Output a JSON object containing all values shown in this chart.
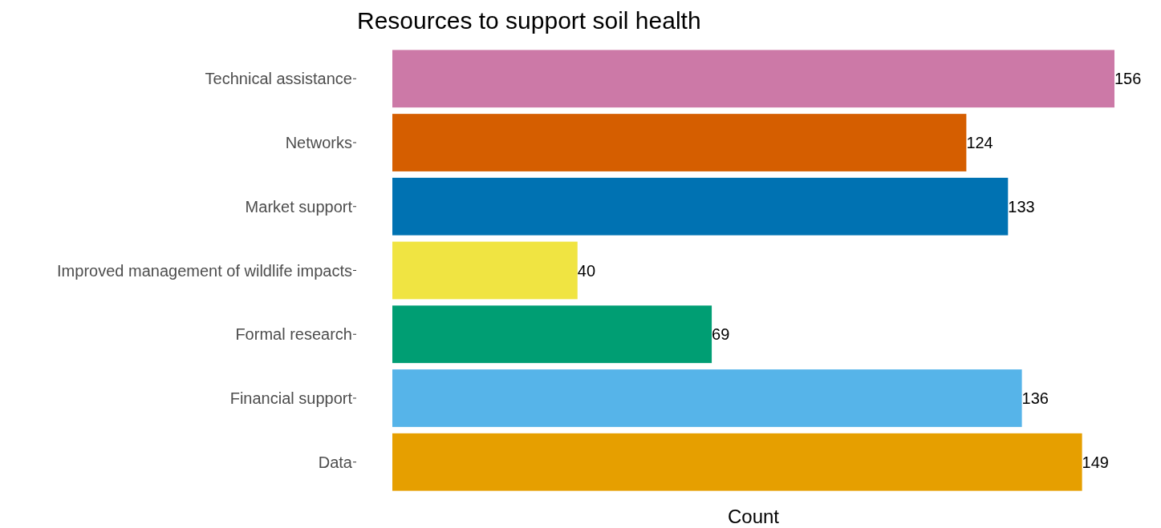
{
  "chart_data": {
    "type": "bar",
    "orientation": "horizontal",
    "title": "Resources to support soil health",
    "xlabel": "Count",
    "categories": [
      "Technical assistance",
      "Networks",
      "Market support",
      "Improved management of wildlife impacts",
      "Formal research",
      "Financial support",
      "Data"
    ],
    "values": [
      156,
      124,
      133,
      40,
      69,
      136,
      149
    ],
    "colors": [
      "#cc79a7",
      "#d55e00",
      "#0072b2",
      "#f0e442",
      "#009e73",
      "#56b4e9",
      "#e69f00"
    ],
    "data_labels": true
  }
}
